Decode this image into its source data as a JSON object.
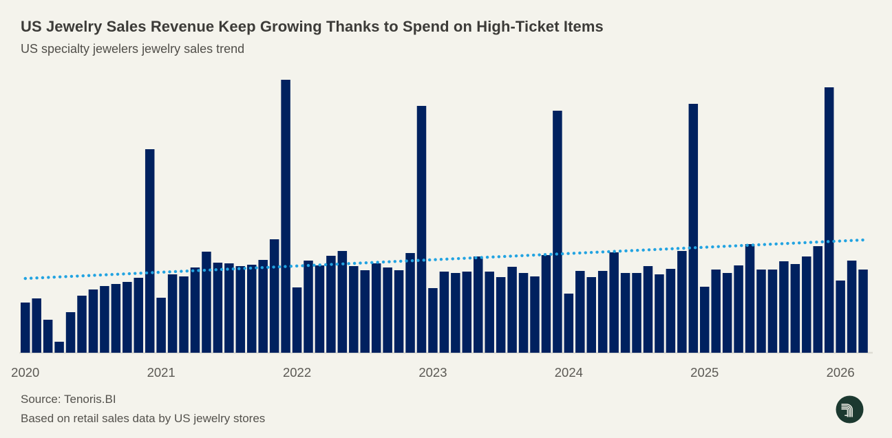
{
  "header": {
    "title": "US Jewelry Sales Revenue Keep Growing Thanks to Spend on High-Ticket Items",
    "subtitle": "US specialty jewelers jewelry sales trend"
  },
  "footer": {
    "source": "Source: Tenoris.BI",
    "note": "Based on retail sales data by US jewelry stores",
    "logo": "tenoris-logo"
  },
  "colors": {
    "background": "#f4f3ec",
    "bar": "#00215f",
    "trend": "#22a3e1",
    "axis_line": "#dedcd4",
    "title": "#3c3b38",
    "subtitle": "#504e49",
    "axis_label": "#5b5954",
    "footer_text": "#53514c",
    "logo_bg": "#1c3930",
    "logo_fg": "#f4f3ec"
  },
  "chart_data": {
    "type": "bar",
    "title": "US Jewelry Sales Revenue Keep Growing Thanks to Spend on High-Ticket Items",
    "subtitle": "US specialty jewelers jewelry sales trend",
    "xlabel": "",
    "ylabel": "",
    "unit": "relative sales index (no y-axis shown in chart)",
    "grid": false,
    "legend": false,
    "ylim": [
      0,
      420
    ],
    "x_tick_labels": [
      "2020",
      "2021",
      "2022",
      "2023",
      "2024",
      "2025",
      "2026"
    ],
    "year_ticks": [
      {
        "label": "2020",
        "month_index": 0
      },
      {
        "label": "2021",
        "month_index": 12
      },
      {
        "label": "2022",
        "month_index": 24
      },
      {
        "label": "2023",
        "month_index": 36
      },
      {
        "label": "2024",
        "month_index": 48
      },
      {
        "label": "2025",
        "month_index": 60
      },
      {
        "label": "2026",
        "month_index": 72
      }
    ],
    "categories": [
      "2020-01",
      "2020-02",
      "2020-03",
      "2020-04",
      "2020-05",
      "2020-06",
      "2020-07",
      "2020-08",
      "2020-09",
      "2020-10",
      "2020-11",
      "2020-12",
      "2021-01",
      "2021-02",
      "2021-03",
      "2021-04",
      "2021-05",
      "2021-06",
      "2021-07",
      "2021-08",
      "2021-09",
      "2021-10",
      "2021-11",
      "2021-12",
      "2022-01",
      "2022-02",
      "2022-03",
      "2022-04",
      "2022-05",
      "2022-06",
      "2022-07",
      "2022-08",
      "2022-09",
      "2022-10",
      "2022-11",
      "2022-12",
      "2023-01",
      "2023-02",
      "2023-03",
      "2023-04",
      "2023-05",
      "2023-06",
      "2023-07",
      "2023-08",
      "2023-09",
      "2023-10",
      "2023-11",
      "2023-12",
      "2024-01",
      "2024-02",
      "2024-03",
      "2024-04",
      "2024-05",
      "2024-06",
      "2024-07",
      "2024-08",
      "2024-09",
      "2024-10",
      "2024-11",
      "2024-12",
      "2025-01",
      "2025-02",
      "2025-03",
      "2025-04",
      "2025-05",
      "2025-06",
      "2025-07",
      "2025-08",
      "2025-09",
      "2025-10",
      "2025-11",
      "2025-12",
      "2026-01",
      "2026-02",
      "2026-03"
    ],
    "values": [
      73,
      79,
      48,
      16,
      59,
      83,
      92,
      97,
      100,
      103,
      109,
      296,
      80,
      114,
      111,
      124,
      147,
      131,
      130,
      126,
      128,
      135,
      165,
      397,
      95,
      134,
      127,
      141,
      148,
      126,
      120,
      130,
      124,
      120,
      145,
      359,
      94,
      118,
      116,
      118,
      140,
      118,
      110,
      125,
      116,
      111,
      142,
      352,
      86,
      119,
      110,
      119,
      146,
      116,
      116,
      126,
      114,
      122,
      148,
      362,
      96,
      121,
      116,
      127,
      158,
      121,
      121,
      133,
      129,
      140,
      155,
      386,
      105,
      134,
      121
    ],
    "trendline": {
      "style": "dotted",
      "color": "#22a3e1",
      "start_month_index": 0,
      "end_month_index": 74,
      "start_value": 108,
      "end_value": 164
    }
  }
}
